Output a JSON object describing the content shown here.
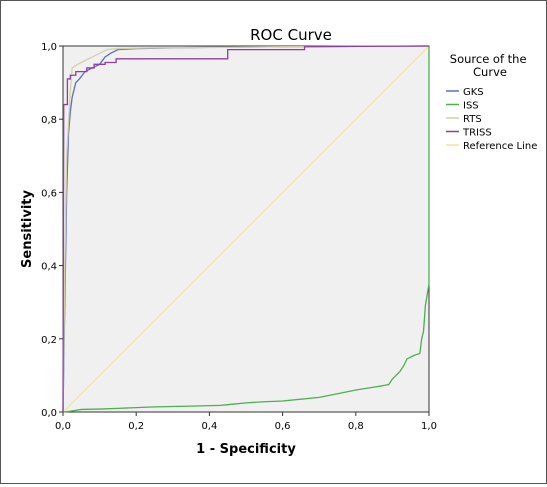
{
  "chart_data": {
    "type": "line",
    "title": "ROC Curve",
    "xlabel": "1 - Specificity",
    "ylabel": "Sensitivity",
    "xlim": [
      0,
      1
    ],
    "ylim": [
      0,
      1
    ],
    "x_ticks": [
      "0,0",
      "0,2",
      "0,4",
      "0,6",
      "0,8",
      "1,0"
    ],
    "y_ticks": [
      "0,0",
      "0,2",
      "0,4",
      "0,6",
      "0,8",
      "1,0"
    ],
    "grid": false,
    "legend": {
      "title": "Source of the Curve",
      "title_lines": [
        "Source of the",
        "Curve"
      ],
      "position": "right"
    },
    "plot_background": "#f0f0f0",
    "series": [
      {
        "name": "GKS",
        "color": "#5b6fb8",
        "points": [
          [
            0,
            0
          ],
          [
            0.005,
            0.3
          ],
          [
            0.01,
            0.6
          ],
          [
            0.015,
            0.76
          ],
          [
            0.02,
            0.82
          ],
          [
            0.025,
            0.86
          ],
          [
            0.03,
            0.88
          ],
          [
            0.035,
            0.9
          ],
          [
            0.045,
            0.91
          ],
          [
            0.06,
            0.93
          ],
          [
            0.08,
            0.94
          ],
          [
            0.1,
            0.95
          ],
          [
            0.115,
            0.97
          ],
          [
            0.13,
            0.98
          ],
          [
            0.15,
            0.99
          ],
          [
            0.2,
            0.993
          ],
          [
            0.3,
            0.995
          ],
          [
            0.45,
            0.997
          ],
          [
            0.6,
            0.998
          ],
          [
            0.8,
            0.999
          ],
          [
            1.0,
            1.0
          ]
        ]
      },
      {
        "name": "ISS",
        "color": "#4caf50",
        "points": [
          [
            0,
            0
          ],
          [
            0.02,
            0.002
          ],
          [
            0.05,
            0.007
          ],
          [
            0.1,
            0.008
          ],
          [
            0.15,
            0.01
          ],
          [
            0.2,
            0.012
          ],
          [
            0.25,
            0.014
          ],
          [
            0.3,
            0.015
          ],
          [
            0.35,
            0.016
          ],
          [
            0.43,
            0.018
          ],
          [
            0.45,
            0.02
          ],
          [
            0.5,
            0.025
          ],
          [
            0.55,
            0.028
          ],
          [
            0.6,
            0.03
          ],
          [
            0.65,
            0.035
          ],
          [
            0.7,
            0.04
          ],
          [
            0.75,
            0.05
          ],
          [
            0.8,
            0.06
          ],
          [
            0.85,
            0.068
          ],
          [
            0.88,
            0.073
          ],
          [
            0.89,
            0.075
          ],
          [
            0.9,
            0.09
          ],
          [
            0.92,
            0.11
          ],
          [
            0.93,
            0.125
          ],
          [
            0.94,
            0.145
          ],
          [
            0.96,
            0.155
          ],
          [
            0.975,
            0.16
          ],
          [
            0.98,
            0.2
          ],
          [
            0.985,
            0.22
          ],
          [
            0.99,
            0.29
          ],
          [
            0.995,
            0.32
          ],
          [
            1.0,
            0.35
          ],
          [
            1.0,
            1.0
          ]
        ]
      },
      {
        "name": "RTS",
        "color": "#d7cfa7",
        "points": [
          [
            0,
            0
          ],
          [
            0.005,
            0.4
          ],
          [
            0.01,
            0.7
          ],
          [
            0.02,
            0.88
          ],
          [
            0.025,
            0.94
          ],
          [
            0.04,
            0.95
          ],
          [
            0.06,
            0.96
          ],
          [
            0.08,
            0.97
          ],
          [
            0.1,
            0.98
          ],
          [
            0.12,
            0.99
          ],
          [
            0.15,
            0.993
          ],
          [
            0.25,
            0.995
          ],
          [
            0.4,
            0.996
          ],
          [
            0.6,
            0.998
          ],
          [
            0.8,
            0.999
          ],
          [
            1.0,
            1.0
          ]
        ]
      },
      {
        "name": "TRISS",
        "color": "#8b3fa0",
        "points": [
          [
            0,
            0
          ],
          [
            0.002,
            0.84
          ],
          [
            0.012,
            0.84
          ],
          [
            0.012,
            0.91
          ],
          [
            0.02,
            0.91
          ],
          [
            0.02,
            0.92
          ],
          [
            0.035,
            0.92
          ],
          [
            0.035,
            0.93
          ],
          [
            0.065,
            0.93
          ],
          [
            0.065,
            0.94
          ],
          [
            0.085,
            0.94
          ],
          [
            0.085,
            0.95
          ],
          [
            0.115,
            0.95
          ],
          [
            0.115,
            0.955
          ],
          [
            0.145,
            0.955
          ],
          [
            0.145,
            0.965
          ],
          [
            0.45,
            0.965
          ],
          [
            0.45,
            0.99
          ],
          [
            0.66,
            0.99
          ],
          [
            0.66,
            0.998
          ],
          [
            0.8,
            0.999
          ],
          [
            1.0,
            1.0
          ]
        ]
      },
      {
        "name": "Reference Line",
        "color": "#f3e3a0",
        "points": [
          [
            0,
            0
          ],
          [
            1,
            1
          ]
        ]
      }
    ]
  }
}
